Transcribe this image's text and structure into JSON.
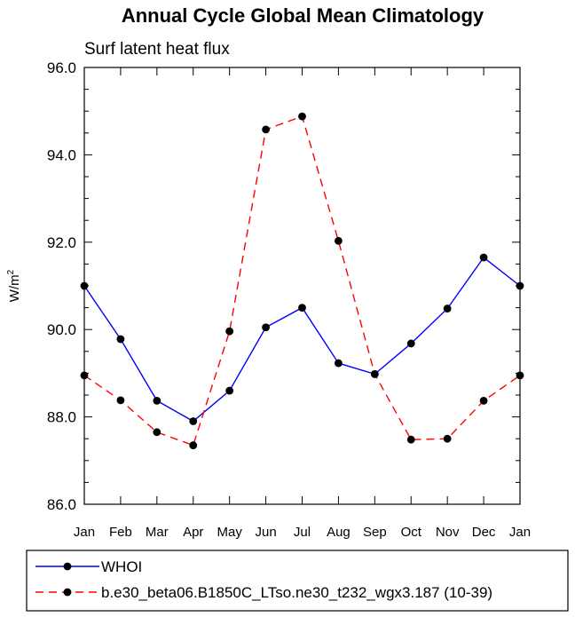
{
  "chart_data": {
    "type": "line",
    "title": "Annual Cycle Global Mean Climatology",
    "subtitle": "Surf latent heat flux",
    "xlabel": "",
    "ylabel": "W/m",
    "ylabel_superscript": "2",
    "categories": [
      "Jan",
      "Feb",
      "Mar",
      "Apr",
      "May",
      "Jun",
      "Jul",
      "Aug",
      "Sep",
      "Oct",
      "Nov",
      "Dec",
      "Jan"
    ],
    "ylim": [
      86.0,
      96.0
    ],
    "yticks": [
      "86.0",
      "88.0",
      "90.0",
      "92.0",
      "94.0",
      "96.0"
    ],
    "grid": false,
    "legend_position": "bottom",
    "series": [
      {
        "name": "WHOI",
        "color": "#0000ff",
        "dash": "solid",
        "values": [
          91.0,
          89.78,
          88.37,
          87.9,
          88.6,
          90.05,
          90.5,
          89.23,
          88.98,
          89.68,
          90.48,
          91.65,
          91.0
        ]
      },
      {
        "name": "b.e30_beta06.B1850C_LTso.ne30_t232_wgx3.187 (10-39)",
        "color": "#ff0000",
        "dash": "dashed",
        "values": [
          88.95,
          88.38,
          87.65,
          87.35,
          89.96,
          94.58,
          94.88,
          92.03,
          88.98,
          87.48,
          87.5,
          88.37,
          88.95
        ]
      }
    ]
  }
}
